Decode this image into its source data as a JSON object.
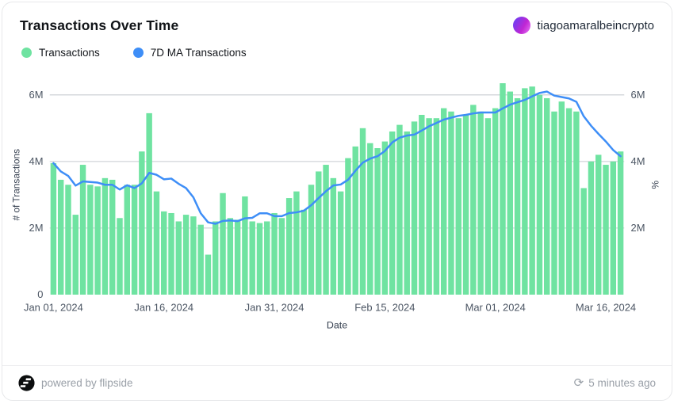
{
  "card": {
    "title": "Transactions Over Time",
    "user": {
      "name": "tiagoamaralbeincrypto"
    },
    "legend": [
      {
        "label": "Transactions",
        "color": "#6fe3a1"
      },
      {
        "label": "7D MA Transactions",
        "color": "#3e8ef7"
      }
    ],
    "footer": {
      "powered_by": "powered by flipside",
      "updated": "5 minutes ago"
    }
  },
  "chart_data": {
    "type": "bar",
    "title": "Transactions Over Time",
    "xlabel": "Date",
    "ylabel_left": "# of Transactions",
    "ylabel_right": "%",
    "ylim_millions": [
      0,
      6.6
    ],
    "grid": "horizontal",
    "yticks": [
      {
        "value": 0,
        "label": "0",
        "right": false
      },
      {
        "value": 2,
        "label": "2M",
        "right": true
      },
      {
        "value": 4,
        "label": "4M",
        "right": true
      },
      {
        "value": 6,
        "label": "6M",
        "right": true
      }
    ],
    "xticks": [
      {
        "index": 0,
        "label": "Jan 01, 2024"
      },
      {
        "index": 15,
        "label": "Jan 16, 2024"
      },
      {
        "index": 30,
        "label": "Jan 31, 2024"
      },
      {
        "index": 45,
        "label": "Feb 15, 2024"
      },
      {
        "index": 60,
        "label": "Mar 01, 2024"
      },
      {
        "index": 75,
        "label": "Mar 16, 2024"
      }
    ],
    "dates": [
      "2024-01-01",
      "2024-01-02",
      "2024-01-03",
      "2024-01-04",
      "2024-01-05",
      "2024-01-06",
      "2024-01-07",
      "2024-01-08",
      "2024-01-09",
      "2024-01-10",
      "2024-01-11",
      "2024-01-12",
      "2024-01-13",
      "2024-01-14",
      "2024-01-15",
      "2024-01-16",
      "2024-01-17",
      "2024-01-18",
      "2024-01-19",
      "2024-01-20",
      "2024-01-21",
      "2024-01-22",
      "2024-01-23",
      "2024-01-24",
      "2024-01-25",
      "2024-01-26",
      "2024-01-27",
      "2024-01-28",
      "2024-01-29",
      "2024-01-30",
      "2024-01-31",
      "2024-02-01",
      "2024-02-02",
      "2024-02-03",
      "2024-02-04",
      "2024-02-05",
      "2024-02-06",
      "2024-02-07",
      "2024-02-08",
      "2024-02-09",
      "2024-02-10",
      "2024-02-11",
      "2024-02-12",
      "2024-02-13",
      "2024-02-14",
      "2024-02-15",
      "2024-02-16",
      "2024-02-17",
      "2024-02-18",
      "2024-02-19",
      "2024-02-20",
      "2024-02-21",
      "2024-02-22",
      "2024-02-23",
      "2024-02-24",
      "2024-02-25",
      "2024-02-26",
      "2024-02-27",
      "2024-02-28",
      "2024-02-29",
      "2024-03-01",
      "2024-03-02",
      "2024-03-03",
      "2024-03-04",
      "2024-03-05",
      "2024-03-06",
      "2024-03-07",
      "2024-03-08",
      "2024-03-09",
      "2024-03-10",
      "2024-03-11",
      "2024-03-12",
      "2024-03-13",
      "2024-03-14",
      "2024-03-15",
      "2024-03-16",
      "2024-03-17",
      "2024-03-18"
    ],
    "series": [
      {
        "name": "Transactions",
        "type": "bar",
        "color": "#6fe3a1",
        "values_millions": [
          3.95,
          3.45,
          3.3,
          2.4,
          3.9,
          3.3,
          3.25,
          3.5,
          3.45,
          2.3,
          3.3,
          3.3,
          4.3,
          5.45,
          3.1,
          2.5,
          2.45,
          2.2,
          2.4,
          2.35,
          2.1,
          1.2,
          2.2,
          3.05,
          2.3,
          2.25,
          2.95,
          2.2,
          2.15,
          2.2,
          2.45,
          2.3,
          2.9,
          3.1,
          2.55,
          3.3,
          3.7,
          3.9,
          3.5,
          3.1,
          4.1,
          4.45,
          5.0,
          4.55,
          4.4,
          4.6,
          4.9,
          5.1,
          4.9,
          5.2,
          5.4,
          5.3,
          5.3,
          5.6,
          5.5,
          5.3,
          5.4,
          5.7,
          5.5,
          5.3,
          5.6,
          6.35,
          6.1,
          5.9,
          6.2,
          6.25,
          6.0,
          5.9,
          5.5,
          5.8,
          5.6,
          5.5,
          3.2,
          4.0,
          4.2,
          3.9,
          4.0,
          4.3
        ]
      },
      {
        "name": "7D MA Transactions",
        "type": "line",
        "color": "#3e8ef7",
        "derived": "7-day trailing moving average of Transactions"
      }
    ]
  }
}
